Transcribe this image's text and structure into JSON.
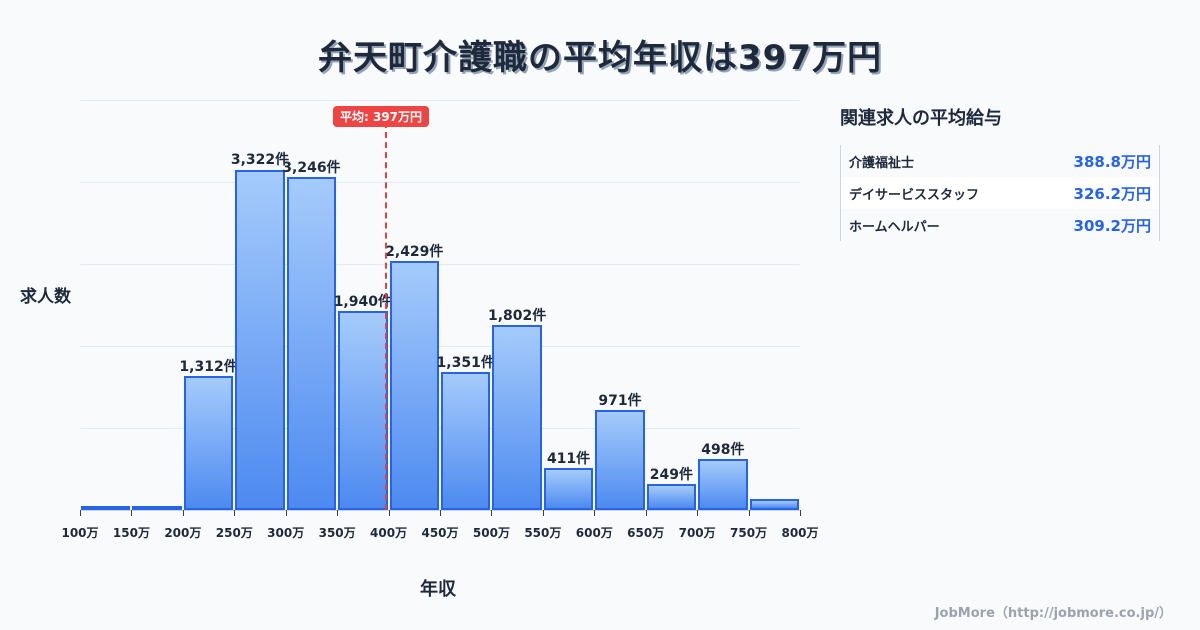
{
  "title": "弁天町介護職の平均年収は397万円",
  "chart_data": {
    "type": "bar",
    "title": "弁天町介護職の平均年収は397万円",
    "xlabel": "年収",
    "ylabel": "求人数",
    "categories": [
      "100-150万",
      "150-200万",
      "200-250万",
      "250-300万",
      "300-350万",
      "350-400万",
      "400-450万",
      "450-500万",
      "500-550万",
      "550-600万",
      "600-650万",
      "650-700万",
      "700-750万",
      "750-800万"
    ],
    "values": [
      15,
      35,
      1312,
      3322,
      3246,
      1940,
      2429,
      1351,
      1802,
      411,
      971,
      249,
      498,
      110
    ],
    "labels": [
      "",
      "",
      "1,312件",
      "3,322件",
      "3,246件",
      "1,940件",
      "2,429件",
      "1,351件",
      "1,802件",
      "411件",
      "971件",
      "249件",
      "498件",
      ""
    ],
    "x_ticks": [
      "100万",
      "150万",
      "200万",
      "250万",
      "300万",
      "350万",
      "400万",
      "450万",
      "500万",
      "550万",
      "600万",
      "650万",
      "700万",
      "750万",
      "800万"
    ],
    "ylim": [
      0,
      4000
    ],
    "grid": true,
    "annotation": {
      "label": "平均: 397万円",
      "x": 397,
      "color": "#ef4444"
    },
    "bar_color": "#4d8af0",
    "bar_border": "#2563eb"
  },
  "side_panel": {
    "title": "関連求人の平均給与",
    "rows": [
      {
        "name": "介護福祉士",
        "value": "388.8万円"
      },
      {
        "name": "デイサービススタッフ",
        "value": "326.2万円"
      },
      {
        "name": "ホームヘルパー",
        "value": "309.2万円"
      }
    ]
  },
  "footer": "JobMore（http://jobmore.co.jp/）"
}
